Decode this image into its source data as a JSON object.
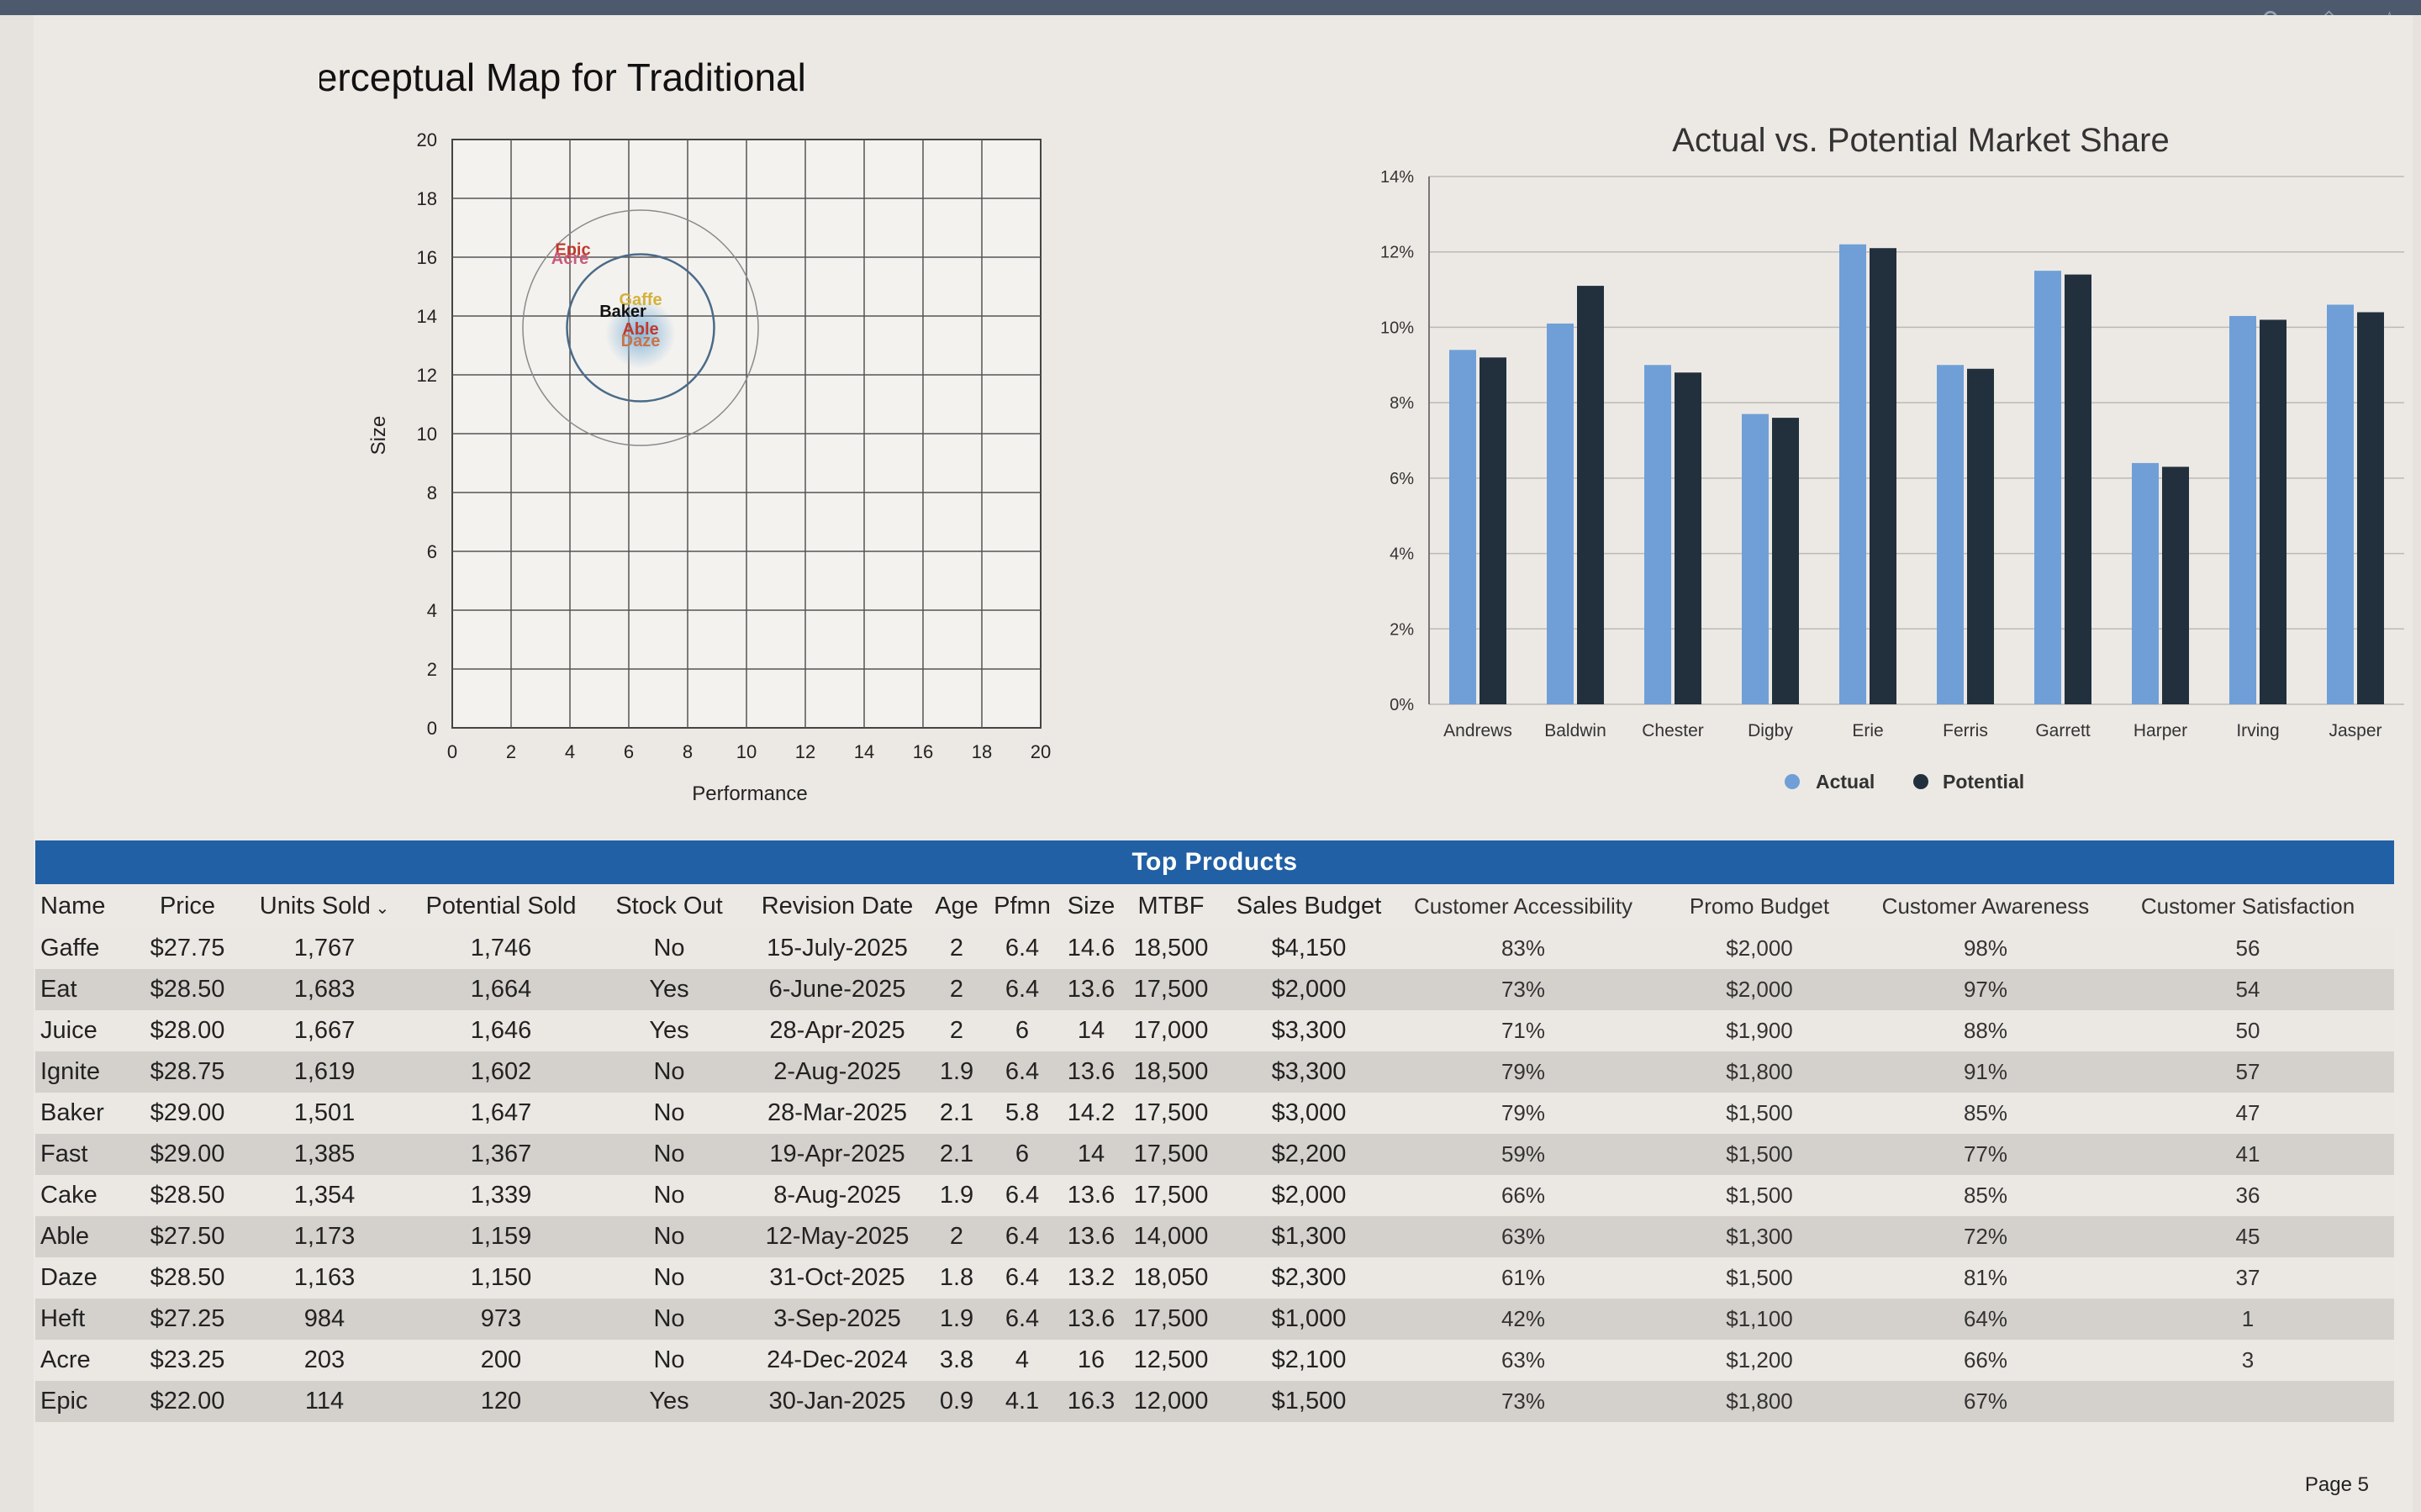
{
  "topbar": {
    "icons": [
      "search-icon",
      "share-icon",
      "star-icon"
    ]
  },
  "perceptual_map": {
    "title": "Perceptual Map for Traditional",
    "xlabel": "Performance",
    "ylabel": "Size",
    "xticks": [
      "0",
      "2",
      "4",
      "6",
      "8",
      "10",
      "12",
      "14",
      "16",
      "18",
      "20"
    ],
    "yticks": [
      "0",
      "2",
      "4",
      "6",
      "8",
      "10",
      "12",
      "14",
      "16",
      "18",
      "20"
    ],
    "circle_center": {
      "performance": 6.4,
      "size": 13.6
    },
    "ideal_point": {
      "performance": 6.4,
      "size": 13.4
    },
    "inner_circle_radius": 2.5,
    "outer_circle_radius": 4,
    "products": [
      {
        "name": "Epic",
        "performance": 4.1,
        "size": 16.3,
        "color": "#c0392b"
      },
      {
        "name": "Acre",
        "performance": 4.0,
        "size": 16.0,
        "color": "#c85b7c"
      },
      {
        "name": "Gaffe",
        "performance": 6.4,
        "size": 14.6,
        "color": "#d4b13a"
      },
      {
        "name": "Baker",
        "performance": 5.8,
        "size": 14.2,
        "color": "#111111"
      },
      {
        "name": "Able",
        "performance": 6.4,
        "size": 13.6,
        "color": "#c0392b"
      },
      {
        "name": "Daze",
        "performance": 6.4,
        "size": 13.2,
        "color": "#c8744a"
      }
    ]
  },
  "chart_data": [
    {
      "type": "scatter",
      "title": "Perceptual Map for Traditional",
      "xlabel": "Performance",
      "ylabel": "Size",
      "xlim": [
        0,
        20
      ],
      "ylim": [
        0,
        20
      ],
      "points": [
        {
          "label": "Epic",
          "x": 4.1,
          "y": 16.3
        },
        {
          "label": "Acre",
          "x": 4.0,
          "y": 16.0
        },
        {
          "label": "Gaffe",
          "x": 6.4,
          "y": 14.6
        },
        {
          "label": "Baker",
          "x": 5.8,
          "y": 14.2
        },
        {
          "label": "Able",
          "x": 6.4,
          "y": 13.6
        },
        {
          "label": "Daze",
          "x": 6.4,
          "y": 13.2
        }
      ]
    },
    {
      "type": "bar",
      "title": "Actual vs. Potential Market Share",
      "categories": [
        "Andrews",
        "Baldwin",
        "Chester",
        "Digby",
        "Erie",
        "Ferris",
        "Garrett",
        "Harper",
        "Irving",
        "Jasper"
      ],
      "series": [
        {
          "name": "Actual",
          "color": "#6f9fd6",
          "values": [
            9.4,
            10.1,
            9.0,
            7.7,
            12.2,
            9.0,
            11.5,
            6.4,
            10.3,
            10.6
          ]
        },
        {
          "name": "Potential",
          "color": "#22303d",
          "values": [
            9.2,
            11.1,
            8.8,
            7.6,
            12.1,
            8.9,
            11.4,
            6.3,
            10.2,
            10.4
          ]
        }
      ],
      "yticks": [
        "0%",
        "2%",
        "4%",
        "6%",
        "8%",
        "10%",
        "12%",
        "14%"
      ],
      "ylim": [
        0,
        14
      ],
      "legend": "bottom-center"
    }
  ],
  "market_share": {
    "title": "Actual vs. Potential Market Share",
    "legend": {
      "actual": "Actual",
      "potential": "Potential"
    }
  },
  "table": {
    "title": "Top Products",
    "sort_icon": "chevron-down-icon",
    "columns": [
      "Name",
      "Price",
      "Units Sold",
      "Potential Sold",
      "Stock Out",
      "Revision Date",
      "Age",
      "Pfmn",
      "Size",
      "MTBF",
      "Sales Budget",
      "Customer Accessibility",
      "Promo Budget",
      "Customer Awareness",
      "Customer Satisfaction"
    ],
    "rows": [
      [
        "Gaffe",
        "$27.75",
        "1,767",
        "1,746",
        "No",
        "15-July-2025",
        "2",
        "6.4",
        "14.6",
        "18,500",
        "$4,150",
        "83%",
        "$2,000",
        "98%",
        "56"
      ],
      [
        "Eat",
        "$28.50",
        "1,683",
        "1,664",
        "Yes",
        "6-June-2025",
        "2",
        "6.4",
        "13.6",
        "17,500",
        "$2,000",
        "73%",
        "$2,000",
        "97%",
        "54"
      ],
      [
        "Juice",
        "$28.00",
        "1,667",
        "1,646",
        "Yes",
        "28-Apr-2025",
        "2",
        "6",
        "14",
        "17,000",
        "$3,300",
        "71%",
        "$1,900",
        "88%",
        "50"
      ],
      [
        "Ignite",
        "$28.75",
        "1,619",
        "1,602",
        "No",
        "2-Aug-2025",
        "1.9",
        "6.4",
        "13.6",
        "18,500",
        "$3,300",
        "79%",
        "$1,800",
        "91%",
        "57"
      ],
      [
        "Baker",
        "$29.00",
        "1,501",
        "1,647",
        "No",
        "28-Mar-2025",
        "2.1",
        "5.8",
        "14.2",
        "17,500",
        "$3,000",
        "79%",
        "$1,500",
        "85%",
        "47"
      ],
      [
        "Fast",
        "$29.00",
        "1,385",
        "1,367",
        "No",
        "19-Apr-2025",
        "2.1",
        "6",
        "14",
        "17,500",
        "$2,200",
        "59%",
        "$1,500",
        "77%",
        "41"
      ],
      [
        "Cake",
        "$28.50",
        "1,354",
        "1,339",
        "No",
        "8-Aug-2025",
        "1.9",
        "6.4",
        "13.6",
        "17,500",
        "$2,000",
        "66%",
        "$1,500",
        "85%",
        "36"
      ],
      [
        "Able",
        "$27.50",
        "1,173",
        "1,159",
        "No",
        "12-May-2025",
        "2",
        "6.4",
        "13.6",
        "14,000",
        "$1,300",
        "63%",
        "$1,300",
        "72%",
        "45"
      ],
      [
        "Daze",
        "$28.50",
        "1,163",
        "1,150",
        "No",
        "31-Oct-2025",
        "1.8",
        "6.4",
        "13.2",
        "18,050",
        "$2,300",
        "61%",
        "$1,500",
        "81%",
        "37"
      ],
      [
        "Heft",
        "$27.25",
        "984",
        "973",
        "No",
        "3-Sep-2025",
        "1.9",
        "6.4",
        "13.6",
        "17,500",
        "$1,000",
        "42%",
        "$1,100",
        "64%",
        "1"
      ],
      [
        "Acre",
        "$23.25",
        "203",
        "200",
        "No",
        "24-Dec-2024",
        "3.8",
        "4",
        "16",
        "12,500",
        "$2,100",
        "63%",
        "$1,200",
        "66%",
        "3"
      ],
      [
        "Epic",
        "$22.00",
        "114",
        "120",
        "Yes",
        "30-Jan-2025",
        "0.9",
        "4.1",
        "16.3",
        "12,000",
        "$1,500",
        "73%",
        "$1,800",
        "67%",
        ""
      ]
    ]
  },
  "footer": {
    "page": "Page 5"
  }
}
